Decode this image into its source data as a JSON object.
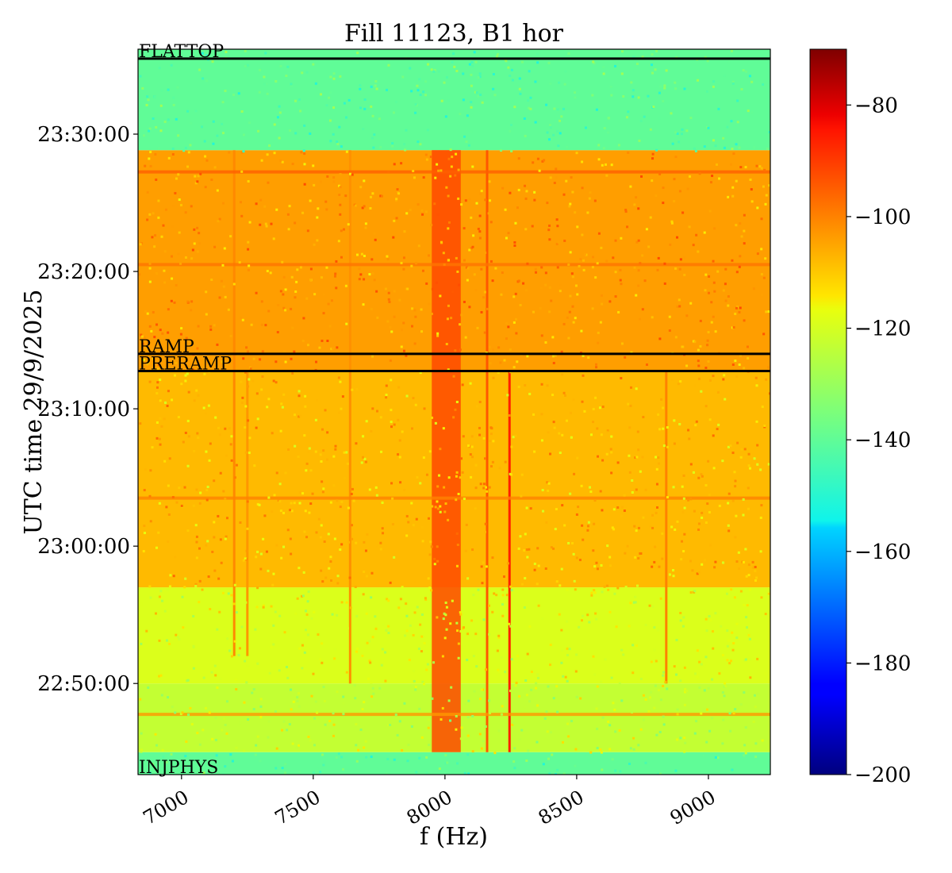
{
  "chart_data": {
    "type": "heatmap",
    "title": "Fill 11123, B1 hor",
    "xlabel": "f (Hz)",
    "ylabel": "UTC time 29/9/2025",
    "xlim": [
      6835,
      9235
    ],
    "x_ticks": [
      7000,
      7500,
      8000,
      8500,
      9000
    ],
    "x_tick_labels": [
      "7000",
      "7500",
      "8000",
      "8500",
      "9000"
    ],
    "y_time_range": [
      "22:43:22",
      "23:36:11"
    ],
    "y_ticks": [
      "22:50:00",
      "23:00:00",
      "23:10:00",
      "23:20:00",
      "23:30:00"
    ],
    "y_tick_labels": [
      "22:50:00",
      "23:00:00",
      "23:10:00",
      "23:20:00",
      "23:30:00"
    ],
    "colorbar": {
      "colormap": "jet",
      "range": [
        -200,
        -70
      ],
      "ticks": [
        -80,
        -100,
        -120,
        -140,
        -160,
        -180,
        -200
      ],
      "tick_labels": [
        "−80",
        "−100",
        "−120",
        "−140",
        "−160",
        "−180",
        "−200"
      ]
    },
    "markers": [
      {
        "label": "FLATTOP",
        "time": "23:35:30"
      },
      {
        "label": "RAMP",
        "time": "23:14:00"
      },
      {
        "label": "PRERAMP",
        "time": "23:12:45"
      },
      {
        "label": "INJPHYS",
        "time": "22:43:22"
      }
    ],
    "regions": [
      {
        "from": "22:43:22",
        "to": "22:45:00",
        "level_db": -140
      },
      {
        "from": "22:45:00",
        "to": "22:50:00",
        "level_db": -123
      },
      {
        "from": "22:50:00",
        "to": "22:57:00",
        "level_db": -119
      },
      {
        "from": "22:57:00",
        "to": "23:12:45",
        "level_db": -108
      },
      {
        "from": "23:12:45",
        "to": "23:28:50",
        "level_db": -104
      },
      {
        "from": "23:28:50",
        "to": "23:36:11",
        "level_db": -140
      }
    ],
    "features": [
      {
        "type": "band",
        "f_from": 7950,
        "f_to": 8060,
        "t_from": "22:45:00",
        "t_to": "23:28:50",
        "level_db": -92
      },
      {
        "type": "line",
        "f": 8160,
        "t_from": "22:45:00",
        "t_to": "23:28:50",
        "level_db": -94
      },
      {
        "type": "line",
        "f": 8245,
        "t_from": "22:45:00",
        "t_to": "23:12:45",
        "level_db": -86
      },
      {
        "type": "line",
        "f": 7200,
        "t_from": "22:52:00",
        "t_to": "23:28:50",
        "level_db": -101
      },
      {
        "type": "line",
        "f": 7250,
        "t_from": "22:52:00",
        "t_to": "23:12:45",
        "level_db": -103
      },
      {
        "type": "line",
        "f": 7640,
        "t_from": "22:50:00",
        "t_to": "23:28:50",
        "level_db": -102
      },
      {
        "type": "line",
        "f": 8840,
        "t_from": "22:50:00",
        "t_to": "23:12:45",
        "level_db": -100
      },
      {
        "type": "hline",
        "t": "23:27:15",
        "f_from": 6835,
        "f_to": 9235,
        "level_db": -95
      },
      {
        "type": "hline",
        "t": "23:20:30",
        "f_from": 6835,
        "f_to": 9235,
        "level_db": -98
      },
      {
        "type": "hline",
        "t": "23:03:30",
        "f_from": 6835,
        "f_to": 9235,
        "level_db": -100
      },
      {
        "type": "hline",
        "t": "22:47:45",
        "f_from": 6835,
        "f_to": 9235,
        "level_db": -103
      }
    ]
  }
}
